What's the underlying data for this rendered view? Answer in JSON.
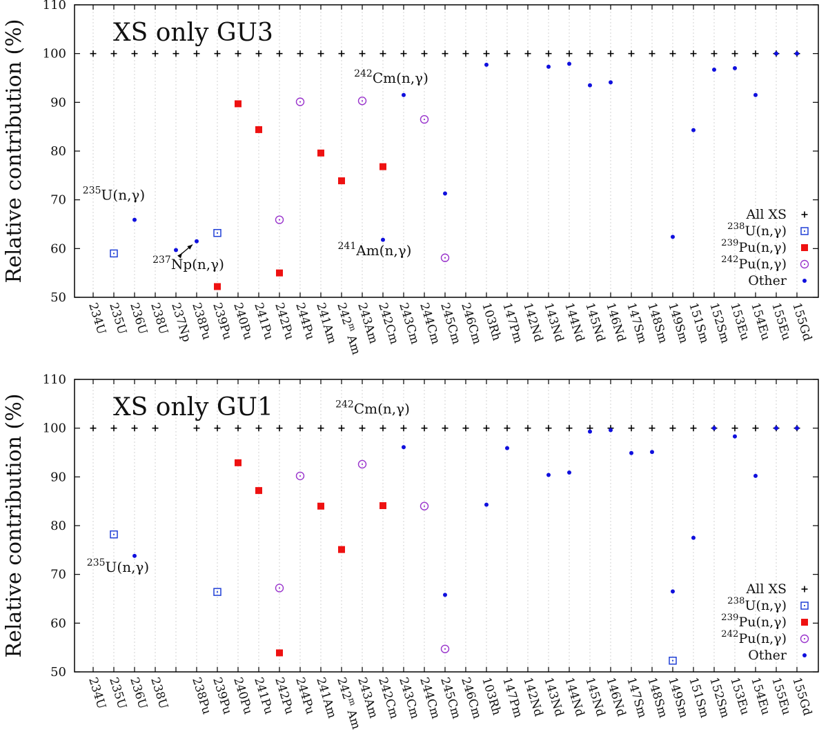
{
  "chart_data": [
    {
      "type": "scatter",
      "title": "XS only GU3",
      "ylabel": "Relative contribution (%)",
      "ylim": [
        50,
        110
      ],
      "yticks": [
        50,
        60,
        70,
        80,
        90,
        100,
        110
      ],
      "categories": [
        {
          "sup": "",
          "base": "234U"
        },
        {
          "sup": "",
          "base": "235U"
        },
        {
          "sup": "",
          "base": "236U"
        },
        {
          "sup": "",
          "base": "238U"
        },
        {
          "sup": "",
          "base": "237Np"
        },
        {
          "sup": "",
          "base": "238Pu"
        },
        {
          "sup": "",
          "base": "239Pu"
        },
        {
          "sup": "",
          "base": "240Pu"
        },
        {
          "sup": "",
          "base": "241Pu"
        },
        {
          "sup": "",
          "base": "242Pu"
        },
        {
          "sup": "",
          "base": "244Pu"
        },
        {
          "sup": "",
          "base": "241Am"
        },
        {
          "sup": "m",
          "base": "242",
          "tail": "Am"
        },
        {
          "sup": "",
          "base": "243Am"
        },
        {
          "sup": "",
          "base": "242Cm"
        },
        {
          "sup": "",
          "base": "243Cm"
        },
        {
          "sup": "",
          "base": "244Cm"
        },
        {
          "sup": "",
          "base": "245Cm"
        },
        {
          "sup": "",
          "base": "246Cm"
        },
        {
          "sup": "",
          "base": "103Rh"
        },
        {
          "sup": "",
          "base": "147Pm"
        },
        {
          "sup": "",
          "base": "142Nd"
        },
        {
          "sup": "",
          "base": "143Nd"
        },
        {
          "sup": "",
          "base": "144Nd"
        },
        {
          "sup": "",
          "base": "145Nd"
        },
        {
          "sup": "",
          "base": "146Nd"
        },
        {
          "sup": "",
          "base": "147Sm"
        },
        {
          "sup": "",
          "base": "148Sm"
        },
        {
          "sup": "",
          "base": "149Sm"
        },
        {
          "sup": "",
          "base": "151Sm"
        },
        {
          "sup": "",
          "base": "152Sm"
        },
        {
          "sup": "",
          "base": "153Eu"
        },
        {
          "sup": "",
          "base": "154Eu"
        },
        {
          "sup": "",
          "base": "155Eu"
        },
        {
          "sup": "",
          "base": "155Gd"
        }
      ],
      "series": [
        {
          "name": "All XS",
          "marker": "plus",
          "color": "#000000",
          "points": [
            [
              0,
              100
            ],
            [
              1,
              100
            ],
            [
              2,
              100
            ],
            [
              3,
              100
            ],
            [
              4,
              100
            ],
            [
              5,
              100
            ],
            [
              6,
              100
            ],
            [
              7,
              100
            ],
            [
              8,
              100
            ],
            [
              9,
              100
            ],
            [
              10,
              100
            ],
            [
              11,
              100
            ],
            [
              12,
              100
            ],
            [
              13,
              100
            ],
            [
              14,
              100
            ],
            [
              15,
              100
            ],
            [
              16,
              100
            ],
            [
              17,
              100
            ],
            [
              18,
              100
            ],
            [
              19,
              100
            ],
            [
              20,
              100
            ],
            [
              21,
              100
            ],
            [
              22,
              100
            ],
            [
              23,
              100
            ],
            [
              24,
              100
            ],
            [
              25,
              100
            ],
            [
              26,
              100
            ],
            [
              27,
              100
            ],
            [
              28,
              100
            ],
            [
              29,
              100
            ],
            [
              30,
              100
            ],
            [
              31,
              100
            ],
            [
              32,
              100
            ],
            [
              33,
              100
            ],
            [
              34,
              100
            ]
          ]
        },
        {
          "name": "238U(n,γ)",
          "legend_sup": "238",
          "legend_base": "U(n,γ)",
          "marker": "open-square",
          "color": "#1f3fd6",
          "points": [
            [
              1,
              59
            ],
            [
              6,
              63.2
            ]
          ]
        },
        {
          "name": "239Pu(n,γ)",
          "legend_sup": "239",
          "legend_base": "Pu(n,γ)",
          "marker": "filled-square",
          "color": "#ee1111",
          "points": [
            [
              6,
              52.2
            ],
            [
              7,
              89.7
            ],
            [
              8,
              84.4
            ],
            [
              9,
              55
            ],
            [
              11,
              79.6
            ],
            [
              12,
              73.9
            ],
            [
              14,
              76.8
            ]
          ]
        },
        {
          "name": "242Pu(n,γ)",
          "legend_sup": "242",
          "legend_base": "Pu(n,γ)",
          "marker": "dot-circle",
          "color": "#9933cc",
          "points": [
            [
              9,
              65.9
            ],
            [
              10,
              90.1
            ],
            [
              13,
              90.3
            ],
            [
              16,
              86.5
            ],
            [
              17,
              58.1
            ]
          ]
        },
        {
          "name": "Other",
          "marker": "dot",
          "color": "#1010dd",
          "points": [
            [
              2,
              65.9
            ],
            [
              4,
              59.7
            ],
            [
              5,
              61.5
            ],
            [
              14,
              61.8
            ],
            [
              15,
              91.5
            ],
            [
              17,
              71.3
            ],
            [
              19,
              97.7
            ],
            [
              22,
              97.3
            ],
            [
              23,
              97.9
            ],
            [
              24,
              93.5
            ],
            [
              25,
              94.1
            ],
            [
              28,
              62.4
            ],
            [
              29,
              84.3
            ],
            [
              30,
              96.7
            ],
            [
              31,
              97
            ],
            [
              32,
              91.5
            ],
            [
              33,
              100
            ],
            [
              34,
              100
            ]
          ]
        }
      ],
      "annotations": [
        {
          "sup": "235",
          "text": "U(n,γ)",
          "x": 1,
          "y": 70
        },
        {
          "sup": "237",
          "text": "Np(n,γ)",
          "x": 4.6,
          "y": 55.8,
          "arrows": [
            [
              4.3,
              59.1
            ],
            [
              4.8,
              60.8
            ]
          ]
        },
        {
          "sup": "242",
          "text": "Cm(n,γ)",
          "x": 14.4,
          "y": 94
        },
        {
          "sup": "241",
          "text": "Am(n,γ)",
          "x": 13.6,
          "y": 58.6
        }
      ],
      "legend": "bottom-right"
    },
    {
      "type": "scatter",
      "title": "XS only GU1",
      "ylabel": "Relative contribution (%)",
      "ylim": [
        50,
        110
      ],
      "yticks": [
        50,
        60,
        70,
        80,
        90,
        100,
        110
      ],
      "categories": [
        {
          "sup": "",
          "base": "234U"
        },
        {
          "sup": "",
          "base": "235U"
        },
        {
          "sup": "",
          "base": "236U"
        },
        {
          "sup": "",
          "base": "238U"
        },
        {
          "sup": "",
          "base": ""
        },
        {
          "sup": "",
          "base": "238Pu"
        },
        {
          "sup": "",
          "base": "239Pu"
        },
        {
          "sup": "",
          "base": "240Pu"
        },
        {
          "sup": "",
          "base": "241Pu"
        },
        {
          "sup": "",
          "base": "242Pu"
        },
        {
          "sup": "",
          "base": "244Pu"
        },
        {
          "sup": "",
          "base": "241Am"
        },
        {
          "sup": "m",
          "base": "242",
          "tail": "Am"
        },
        {
          "sup": "",
          "base": "243Am"
        },
        {
          "sup": "",
          "base": "242Cm"
        },
        {
          "sup": "",
          "base": "243Cm"
        },
        {
          "sup": "",
          "base": "244Cm"
        },
        {
          "sup": "",
          "base": "245Cm"
        },
        {
          "sup": "",
          "base": "246Cm"
        },
        {
          "sup": "",
          "base": "103Rh"
        },
        {
          "sup": "",
          "base": "147Pm"
        },
        {
          "sup": "",
          "base": "142Nd"
        },
        {
          "sup": "",
          "base": "143Nd"
        },
        {
          "sup": "",
          "base": "144Nd"
        },
        {
          "sup": "",
          "base": "145Nd"
        },
        {
          "sup": "",
          "base": "146Nd"
        },
        {
          "sup": "",
          "base": "147Sm"
        },
        {
          "sup": "",
          "base": "148Sm"
        },
        {
          "sup": "",
          "base": "149Sm"
        },
        {
          "sup": "",
          "base": "151Sm"
        },
        {
          "sup": "",
          "base": "152Sm"
        },
        {
          "sup": "",
          "base": "153Eu"
        },
        {
          "sup": "",
          "base": "154Eu"
        },
        {
          "sup": "",
          "base": "155Eu"
        },
        {
          "sup": "",
          "base": "155Gd"
        }
      ],
      "series": [
        {
          "name": "All XS",
          "marker": "plus",
          "color": "#000000",
          "points": [
            [
              0,
              100
            ],
            [
              1,
              100
            ],
            [
              2,
              100
            ],
            [
              3,
              100
            ],
            [
              5,
              100
            ],
            [
              6,
              100
            ],
            [
              7,
              100
            ],
            [
              8,
              100
            ],
            [
              9,
              100
            ],
            [
              10,
              100
            ],
            [
              11,
              100
            ],
            [
              12,
              100
            ],
            [
              13,
              100
            ],
            [
              14,
              100
            ],
            [
              15,
              100
            ],
            [
              16,
              100
            ],
            [
              17,
              100
            ],
            [
              18,
              100
            ],
            [
              19,
              100
            ],
            [
              20,
              100
            ],
            [
              21,
              100
            ],
            [
              22,
              100
            ],
            [
              23,
              100
            ],
            [
              24,
              100
            ],
            [
              25,
              100
            ],
            [
              26,
              100
            ],
            [
              27,
              100
            ],
            [
              28,
              100
            ],
            [
              29,
              100
            ],
            [
              30,
              100
            ],
            [
              31,
              100
            ],
            [
              32,
              100
            ],
            [
              33,
              100
            ],
            [
              34,
              100
            ]
          ]
        },
        {
          "name": "238U(n,γ)",
          "legend_sup": "238",
          "legend_base": "U(n,γ)",
          "marker": "open-square",
          "color": "#1f3fd6",
          "points": [
            [
              1,
              78.2
            ],
            [
              6,
              66.4
            ],
            [
              28,
              52.3
            ]
          ]
        },
        {
          "name": "239Pu(n,γ)",
          "legend_sup": "239",
          "legend_base": "Pu(n,γ)",
          "marker": "filled-square",
          "color": "#ee1111",
          "points": [
            [
              7,
              92.9
            ],
            [
              8,
              87.2
            ],
            [
              9,
              53.9
            ],
            [
              11,
              84
            ],
            [
              12,
              75.1
            ],
            [
              14,
              84.1
            ]
          ]
        },
        {
          "name": "242Pu(n,γ)",
          "legend_sup": "242",
          "legend_base": "Pu(n,γ)",
          "marker": "dot-circle",
          "color": "#9933cc",
          "points": [
            [
              9,
              67.2
            ],
            [
              10,
              90.2
            ],
            [
              13,
              92.6
            ],
            [
              16,
              84
            ],
            [
              17,
              54.7
            ]
          ]
        },
        {
          "name": "Other",
          "marker": "dot",
          "color": "#1010dd",
          "points": [
            [
              2,
              73.8
            ],
            [
              15,
              96.1
            ],
            [
              17,
              65.8
            ],
            [
              19,
              84.3
            ],
            [
              20,
              95.9
            ],
            [
              22,
              90.4
            ],
            [
              23,
              90.9
            ],
            [
              24,
              99.3
            ],
            [
              25,
              99.6
            ],
            [
              26,
              94.9
            ],
            [
              27,
              95.1
            ],
            [
              28,
              66.5
            ],
            [
              29,
              77.5
            ],
            [
              30,
              100
            ],
            [
              31,
              98.3
            ],
            [
              32,
              90.2
            ],
            [
              33,
              100
            ],
            [
              34,
              100
            ]
          ]
        }
      ],
      "annotations": [
        {
          "sup": "235",
          "text": "U(n,γ)",
          "x": 1.2,
          "y": 70.5
        },
        {
          "sup": "242",
          "text": "Cm(n,γ)",
          "x": 13.5,
          "y": 103
        }
      ],
      "legend": "bottom-right"
    }
  ]
}
